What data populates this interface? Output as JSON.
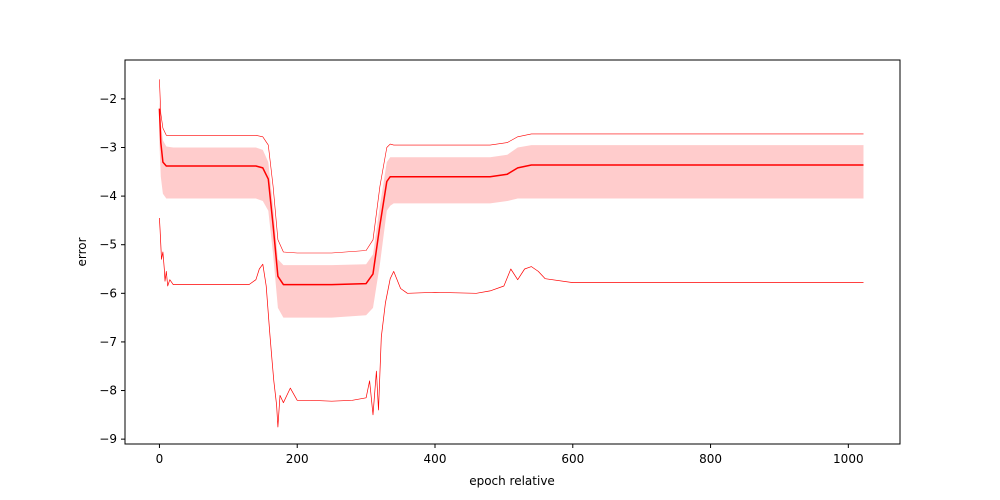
{
  "chart_data": {
    "type": "line",
    "title": "",
    "xlabel": "epoch relative",
    "ylabel": "error",
    "xlim": [
      -50,
      1075
    ],
    "ylim": [
      -9.1,
      -1.2
    ],
    "xticks": [
      0,
      200,
      400,
      600,
      800,
      1000
    ],
    "yticks": [
      -9,
      -8,
      -7,
      -6,
      -5,
      -4,
      -3,
      -2
    ],
    "xtick_labels": [
      "0",
      "200",
      "400",
      "600",
      "800",
      "1000"
    ],
    "ytick_labels": [
      "−9",
      "−8",
      "−7",
      "−6",
      "−5",
      "−4",
      "−3",
      "−2"
    ],
    "grid": false,
    "legend": "none",
    "series_color": "#ff0000",
    "band_color": "#ffcccc",
    "series": [
      {
        "role": "upper",
        "x": [
          0,
          2,
          5,
          10,
          20,
          140,
          150,
          158,
          165,
          172,
          180,
          200,
          250,
          300,
          310,
          320,
          330,
          335,
          340,
          400,
          480,
          505,
          520,
          540,
          600,
          800,
          1022
        ],
        "y": [
          -1.6,
          -2.3,
          -2.6,
          -2.75,
          -2.75,
          -2.75,
          -2.78,
          -2.95,
          -3.8,
          -4.9,
          -5.15,
          -5.17,
          -5.17,
          -5.12,
          -4.9,
          -3.8,
          -3.0,
          -2.93,
          -2.95,
          -2.95,
          -2.95,
          -2.9,
          -2.78,
          -2.72,
          -2.72,
          -2.72,
          -2.72
        ]
      },
      {
        "role": "mean",
        "x": [
          0,
          2,
          5,
          10,
          20,
          140,
          150,
          158,
          165,
          172,
          180,
          200,
          250,
          300,
          310,
          320,
          330,
          335,
          340,
          400,
          480,
          505,
          520,
          540,
          600,
          800,
          1022
        ],
        "y": [
          -2.2,
          -2.9,
          -3.3,
          -3.38,
          -3.38,
          -3.38,
          -3.42,
          -3.65,
          -4.6,
          -5.65,
          -5.82,
          -5.82,
          -5.82,
          -5.8,
          -5.6,
          -4.6,
          -3.7,
          -3.6,
          -3.6,
          -3.6,
          -3.6,
          -3.55,
          -3.42,
          -3.36,
          -3.36,
          -3.36,
          -3.36
        ]
      },
      {
        "role": "lower",
        "x": [
          0,
          1,
          2,
          3,
          5,
          7,
          8,
          10,
          12,
          15,
          20,
          130,
          140,
          145,
          150,
          155,
          160,
          163,
          166,
          170,
          172,
          175,
          180,
          190,
          200,
          220,
          250,
          280,
          300,
          305,
          310,
          315,
          318,
          322,
          328,
          335,
          340,
          350,
          360,
          400,
          460,
          480,
          500,
          510,
          520,
          530,
          540,
          550,
          560,
          600,
          800,
          1022
        ],
        "y": [
          -4.45,
          -4.7,
          -5.0,
          -5.3,
          -5.15,
          -5.5,
          -5.75,
          -5.55,
          -5.85,
          -5.72,
          -5.82,
          -5.82,
          -5.72,
          -5.5,
          -5.4,
          -5.85,
          -6.8,
          -7.3,
          -7.8,
          -8.3,
          -8.75,
          -8.1,
          -8.25,
          -7.95,
          -8.2,
          -8.2,
          -8.22,
          -8.2,
          -8.15,
          -7.8,
          -8.5,
          -7.6,
          -8.4,
          -6.9,
          -6.2,
          -5.7,
          -5.55,
          -5.9,
          -6.0,
          -5.98,
          -6.0,
          -5.95,
          -5.85,
          -5.5,
          -5.72,
          -5.5,
          -5.45,
          -5.55,
          -5.7,
          -5.78,
          -5.78,
          -5.78
        ]
      },
      {
        "role": "band_upper",
        "x": [
          0,
          2,
          5,
          10,
          20,
          140,
          150,
          158,
          165,
          172,
          180,
          200,
          250,
          300,
          310,
          320,
          330,
          335,
          340,
          400,
          480,
          505,
          520,
          540,
          600,
          800,
          1022
        ],
        "y": [
          -1.9,
          -2.5,
          -2.85,
          -2.98,
          -3.0,
          -3.0,
          -3.05,
          -3.3,
          -4.2,
          -5.3,
          -5.42,
          -5.42,
          -5.42,
          -5.4,
          -5.2,
          -4.2,
          -3.3,
          -3.2,
          -3.2,
          -3.2,
          -3.2,
          -3.15,
          -3.0,
          -2.95,
          -2.95,
          -2.95,
          -2.95
        ]
      },
      {
        "role": "band_lower",
        "x": [
          0,
          2,
          5,
          10,
          20,
          140,
          150,
          158,
          165,
          172,
          180,
          200,
          250,
          300,
          310,
          320,
          330,
          335,
          340,
          400,
          480,
          505,
          520,
          540,
          600,
          800,
          1022
        ],
        "y": [
          -2.9,
          -3.6,
          -3.95,
          -4.05,
          -4.05,
          -4.05,
          -4.1,
          -4.3,
          -5.2,
          -6.3,
          -6.5,
          -6.5,
          -6.5,
          -6.45,
          -6.3,
          -5.4,
          -4.3,
          -4.2,
          -4.15,
          -4.15,
          -4.15,
          -4.1,
          -4.05,
          -4.05,
          -4.05,
          -4.05,
          -4.05
        ]
      }
    ]
  }
}
